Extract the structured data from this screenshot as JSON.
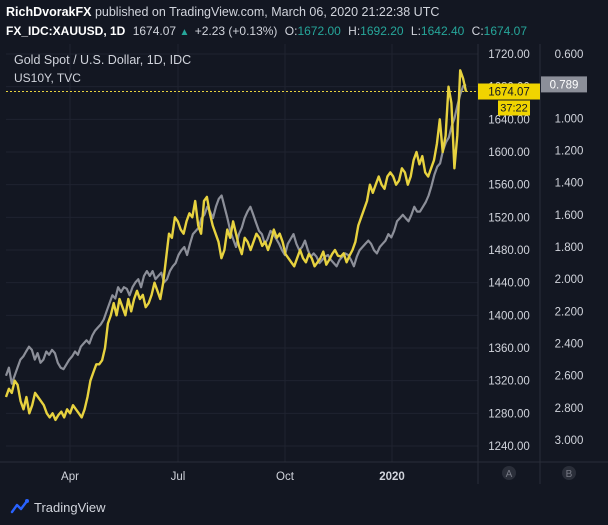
{
  "header": {
    "author": "RichDvorakFX",
    "published_text": "published on TradingView.com, March 06, 2020 21:22:38 UTC",
    "symbol": "FX_IDC:XAUUSD, 1D",
    "last": "1674.07",
    "change": "+2.23 (+0.13%)",
    "o_label": "O:",
    "o_value": "1672.00",
    "h_label": "H:",
    "h_value": "1692.20",
    "l_label": "L:",
    "l_value": "1642.40",
    "c_label": "C:",
    "c_value": "1674.07"
  },
  "legend": {
    "title": "Gold Spot / U.S. Dollar, 1D, IDC",
    "subtitle": "US10Y, TVC"
  },
  "price_badges": {
    "last_price": "1674.07",
    "countdown": "37:22",
    "yield_last": "0.789"
  },
  "scale_buttons": {
    "a": "A",
    "b": "B"
  },
  "footer": {
    "logo_text": "TradingView"
  },
  "colors": {
    "background": "#131722",
    "gold": "#e7d23f",
    "yield": "#8c8f99",
    "grid": "#2a2e39",
    "badge_gold": "#f0d400"
  },
  "chart_data": {
    "type": "line",
    "title": "Gold Spot / U.S. Dollar, 1D, IDC",
    "x_tick_labels": [
      "Apr",
      "Jul",
      "Oct",
      "2020"
    ],
    "left_axis_label_unused": "",
    "right_axis_inner": {
      "label": "XAUUSD",
      "ticks": [
        "1720.00",
        "1680.00",
        "1640.00",
        "1600.00",
        "1560.00",
        "1520.00",
        "1480.00",
        "1440.00",
        "1400.00",
        "1360.00",
        "1320.00",
        "1280.00",
        "1240.00"
      ],
      "range": [
        1220,
        1730
      ]
    },
    "right_axis_outer": {
      "label": "US10Y",
      "ticks": [
        "0.600",
        "0.800",
        "1.000",
        "1.200",
        "1.400",
        "1.600",
        "1.800",
        "2.000",
        "2.200",
        "2.400",
        "2.600",
        "2.800",
        "3.000"
      ],
      "range": [
        0.52,
        3.2
      ],
      "inverted": true
    },
    "series": [
      {
        "name": "Gold Spot / U.S. Dollar",
        "axis": "inner",
        "values": [
          1300,
          1310,
          1305,
          1320,
          1315,
          1295,
          1285,
          1300,
          1280,
          1290,
          1305,
          1300,
          1295,
          1290,
          1280,
          1275,
          1280,
          1272,
          1278,
          1282,
          1275,
          1285,
          1280,
          1290,
          1285,
          1280,
          1275,
          1285,
          1300,
          1320,
          1330,
          1340,
          1340,
          1345,
          1360,
          1390,
          1400,
          1415,
          1400,
          1420,
          1410,
          1400,
          1420,
          1405,
          1420,
          1430,
          1420,
          1425,
          1410,
          1415,
          1425,
          1440,
          1430,
          1420,
          1440,
          1470,
          1500,
          1495,
          1520,
          1515,
          1505,
          1500,
          1515,
          1525,
          1520,
          1540,
          1510,
          1500,
          1540,
          1545,
          1525,
          1510,
          1500,
          1490,
          1470,
          1480,
          1505,
          1495,
          1515,
          1500,
          1485,
          1475,
          1495,
          1490,
          1480,
          1490,
          1500,
          1495,
          1485,
          1490,
          1480,
          1490,
          1505,
          1495,
          1500,
          1490,
          1475,
          1470,
          1465,
          1460,
          1470,
          1480,
          1470,
          1465,
          1475,
          1470,
          1460,
          1465,
          1470,
          1478,
          1462,
          1468,
          1475,
          1480,
          1473,
          1472,
          1476,
          1465,
          1473,
          1480,
          1490,
          1510,
          1520,
          1530,
          1540,
          1560,
          1550,
          1560,
          1570,
          1560,
          1555,
          1570,
          1575,
          1570,
          1560,
          1565,
          1580,
          1575,
          1560,
          1570,
          1590,
          1600,
          1585,
          1595,
          1575,
          1570,
          1580,
          1590,
          1610,
          1640,
          1600,
          1620,
          1680,
          1660,
          1580,
          1620,
          1700,
          1690,
          1674
        ]
      },
      {
        "name": "US10Y",
        "axis": "outer",
        "values": [
          2.6,
          2.55,
          2.65,
          2.6,
          2.55,
          2.5,
          2.48,
          2.45,
          2.42,
          2.44,
          2.5,
          2.46,
          2.52,
          2.5,
          2.45,
          2.47,
          2.44,
          2.46,
          2.52,
          2.55,
          2.56,
          2.53,
          2.5,
          2.48,
          2.45,
          2.47,
          2.42,
          2.4,
          2.38,
          2.4,
          2.35,
          2.32,
          2.3,
          2.28,
          2.25,
          2.2,
          2.15,
          2.1,
          2.12,
          2.05,
          2.08,
          2.05,
          2.06,
          2.1,
          2.05,
          2.02,
          2.0,
          2.05,
          1.98,
          1.95,
          1.98,
          1.95,
          2.0,
          1.98,
          1.96,
          2.02,
          2.0,
          1.95,
          1.92,
          1.9,
          1.85,
          1.82,
          1.8,
          1.85,
          1.78,
          1.72,
          1.7,
          1.68,
          1.62,
          1.6,
          1.55,
          1.58,
          1.62,
          1.55,
          1.5,
          1.48,
          1.55,
          1.62,
          1.7,
          1.75,
          1.8,
          1.72,
          1.68,
          1.62,
          1.58,
          1.55,
          1.6,
          1.65,
          1.7,
          1.72,
          1.78,
          1.75,
          1.7,
          1.72,
          1.75,
          1.78,
          1.82,
          1.85,
          1.78,
          1.75,
          1.72,
          1.78,
          1.82,
          1.8,
          1.76,
          1.82,
          1.86,
          1.84,
          1.86,
          1.9,
          1.88,
          1.86,
          1.85,
          1.88,
          1.9,
          1.92,
          1.88,
          1.86,
          1.84,
          1.85,
          1.88,
          1.92,
          1.86,
          1.82,
          1.8,
          1.78,
          1.76,
          1.78,
          1.82,
          1.84,
          1.8,
          1.78,
          1.76,
          1.72,
          1.74,
          1.7,
          1.64,
          1.62,
          1.6,
          1.62,
          1.64,
          1.6,
          1.55,
          1.58,
          1.58,
          1.55,
          1.52,
          1.48,
          1.42,
          1.35,
          1.3,
          1.28,
          1.2,
          1.15,
          1.12,
          1.05,
          1.0,
          0.92,
          0.85,
          0.8,
          0.789
        ]
      }
    ],
    "last_values": {
      "gold": 1674.07,
      "yield": 0.789
    },
    "grid": true
  }
}
